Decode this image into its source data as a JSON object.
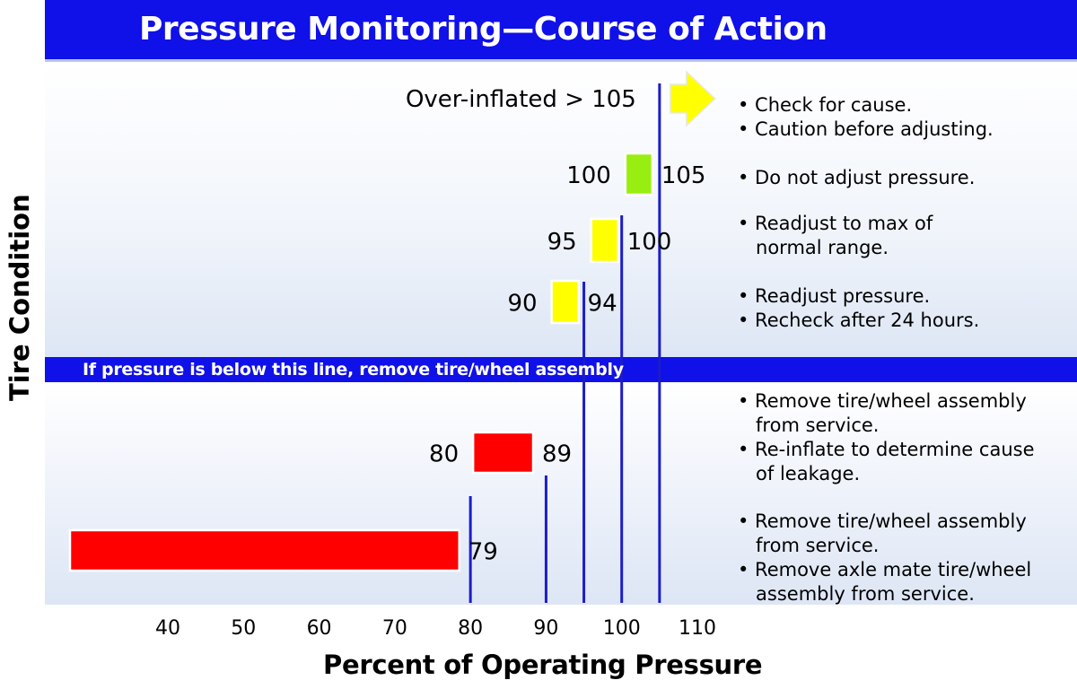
{
  "chart_data": {
    "type": "bar",
    "title": "Pressure Monitoring—Course of Action",
    "xlabel": "Percent of Operating Pressure",
    "ylabel": "Tire Condition",
    "xlim": [
      30,
      115
    ],
    "x_ticks": [
      40,
      50,
      60,
      70,
      80,
      90,
      100,
      110
    ],
    "divider_text": "If pressure is below this line, remove tire/wheel assembly",
    "over_inflated_label": "Over-inflated > 105",
    "colors": {
      "title_bar": "#1010e8",
      "boundary_lines": "#1c1cc8",
      "green": "#99ee11",
      "yellow": "#ffff00",
      "red": "#ff0000"
    },
    "rows": [
      {
        "range": [
          105,
          null
        ],
        "color": "#ffff00",
        "marker": "arrow",
        "actions": [
          "• Check for cause.",
          "• Caution before adjusting."
        ]
      },
      {
        "range": [
          100,
          105
        ],
        "low_label": "100",
        "high_label": "105",
        "color": "#99ee11",
        "actions": [
          "• Do not adjust pressure."
        ]
      },
      {
        "range": [
          95,
          100
        ],
        "low_label": "95",
        "high_label": "100",
        "color": "#ffff00",
        "actions": [
          "• Readjust to max of",
          "   normal range."
        ]
      },
      {
        "range": [
          90,
          94
        ],
        "low_label": "90",
        "high_label": "94",
        "color": "#ffff00",
        "actions": [
          "• Readjust pressure.",
          "• Recheck after 24 hours."
        ]
      },
      {
        "range": [
          80,
          89
        ],
        "low_label": "80",
        "high_label": "89",
        "color": "#ff0000",
        "actions": [
          "• Remove tire/wheel assembly",
          "   from service.",
          "• Re-inflate to determine cause",
          "   of leakage."
        ]
      },
      {
        "range": [
          null,
          79
        ],
        "high_label": "79",
        "color": "#ff0000",
        "actions": [
          "• Remove tire/wheel assembly",
          "   from service.",
          "• Remove axle mate tire/wheel",
          "   assembly from service."
        ]
      }
    ],
    "boundary_lines": [
      80,
      90,
      95,
      100,
      105
    ]
  }
}
